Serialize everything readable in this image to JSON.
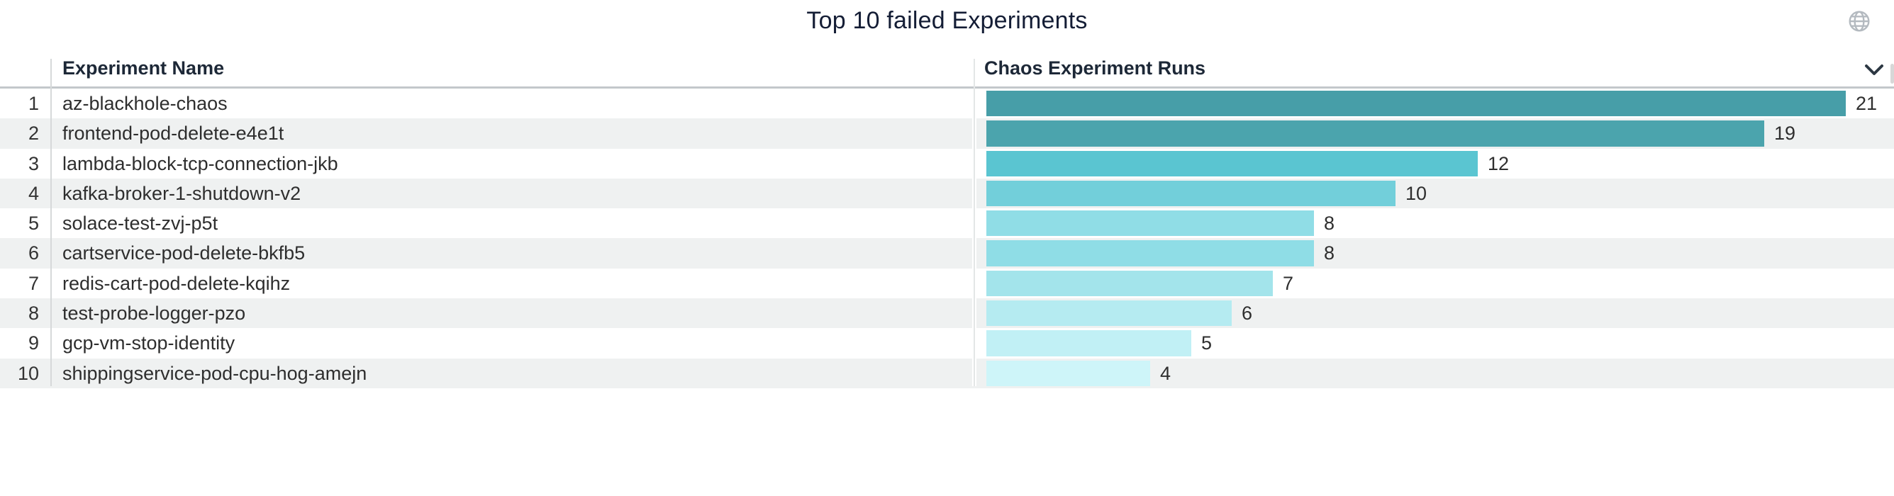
{
  "panel": {
    "title": "Top 10 failed Experiments"
  },
  "icons": {
    "globe": "globe-icon",
    "sort": "chevron-down-icon"
  },
  "table": {
    "headers": {
      "name": "Experiment Name",
      "runs": "Chaos Experiment Runs"
    },
    "rows": [
      {
        "rank": "1",
        "name": "az-blackhole-chaos",
        "runs": 21,
        "bar_color": "#479ea8"
      },
      {
        "rank": "2",
        "name": "frontend-pod-delete-e4e1t",
        "runs": 19,
        "bar_color": "#4ba4ad"
      },
      {
        "rank": "3",
        "name": "lambda-block-tcp-connection-jkb",
        "runs": 12,
        "bar_color": "#5ac5d1"
      },
      {
        "rank": "4",
        "name": "kafka-broker-1-shutdown-v2",
        "runs": 10,
        "bar_color": "#72cfda"
      },
      {
        "rank": "5",
        "name": "solace-test-zvj-p5t",
        "runs": 8,
        "bar_color": "#90dde6"
      },
      {
        "rank": "6",
        "name": "cartservice-pod-delete-bkfb5",
        "runs": 8,
        "bar_color": "#8fdde6"
      },
      {
        "rank": "7",
        "name": "redis-cart-pod-delete-kqihz",
        "runs": 7,
        "bar_color": "#a3e4eb"
      },
      {
        "rank": "8",
        "name": "test-probe-logger-pzo",
        "runs": 6,
        "bar_color": "#b5ebf1"
      },
      {
        "rank": "9",
        "name": "gcp-vm-stop-identity",
        "runs": 5,
        "bar_color": "#c1f0f5"
      },
      {
        "rank": "10",
        "name": "shippingservice-pod-cpu-hog-amejn",
        "runs": 4,
        "bar_color": "#cef5f9"
      }
    ]
  },
  "colors": {
    "row_stripe": "#eff1f1",
    "header_border": "#c3c8cb",
    "title_text": "#141d35",
    "cell_text": "#2e2e2e",
    "globe_gray": "#b4bac0",
    "chevron_dark": "#2d3843"
  },
  "chart_data": {
    "type": "bar",
    "orientation": "horizontal",
    "title": "Top 10 failed Experiments",
    "series_label": "Chaos Experiment Runs",
    "categories": [
      "az-blackhole-chaos",
      "frontend-pod-delete-e4e1t",
      "lambda-block-tcp-connection-jkb",
      "kafka-broker-1-shutdown-v2",
      "solace-test-zvj-p5t",
      "cartservice-pod-delete-bkfb5",
      "redis-cart-pod-delete-kqihz",
      "test-probe-logger-pzo",
      "gcp-vm-stop-identity",
      "shippingservice-pod-cpu-hog-amejn"
    ],
    "values": [
      21,
      19,
      12,
      10,
      8,
      8,
      7,
      6,
      5,
      4
    ],
    "value_labels_shown": true,
    "xlim": [
      0,
      21
    ],
    "grid": false,
    "legend": "none",
    "bar_colors": [
      "#479ea8",
      "#4ba4ad",
      "#5ac5d1",
      "#72cfda",
      "#90dde6",
      "#8fdde6",
      "#a3e4eb",
      "#b5ebf1",
      "#c1f0f5",
      "#cef5f9"
    ]
  }
}
